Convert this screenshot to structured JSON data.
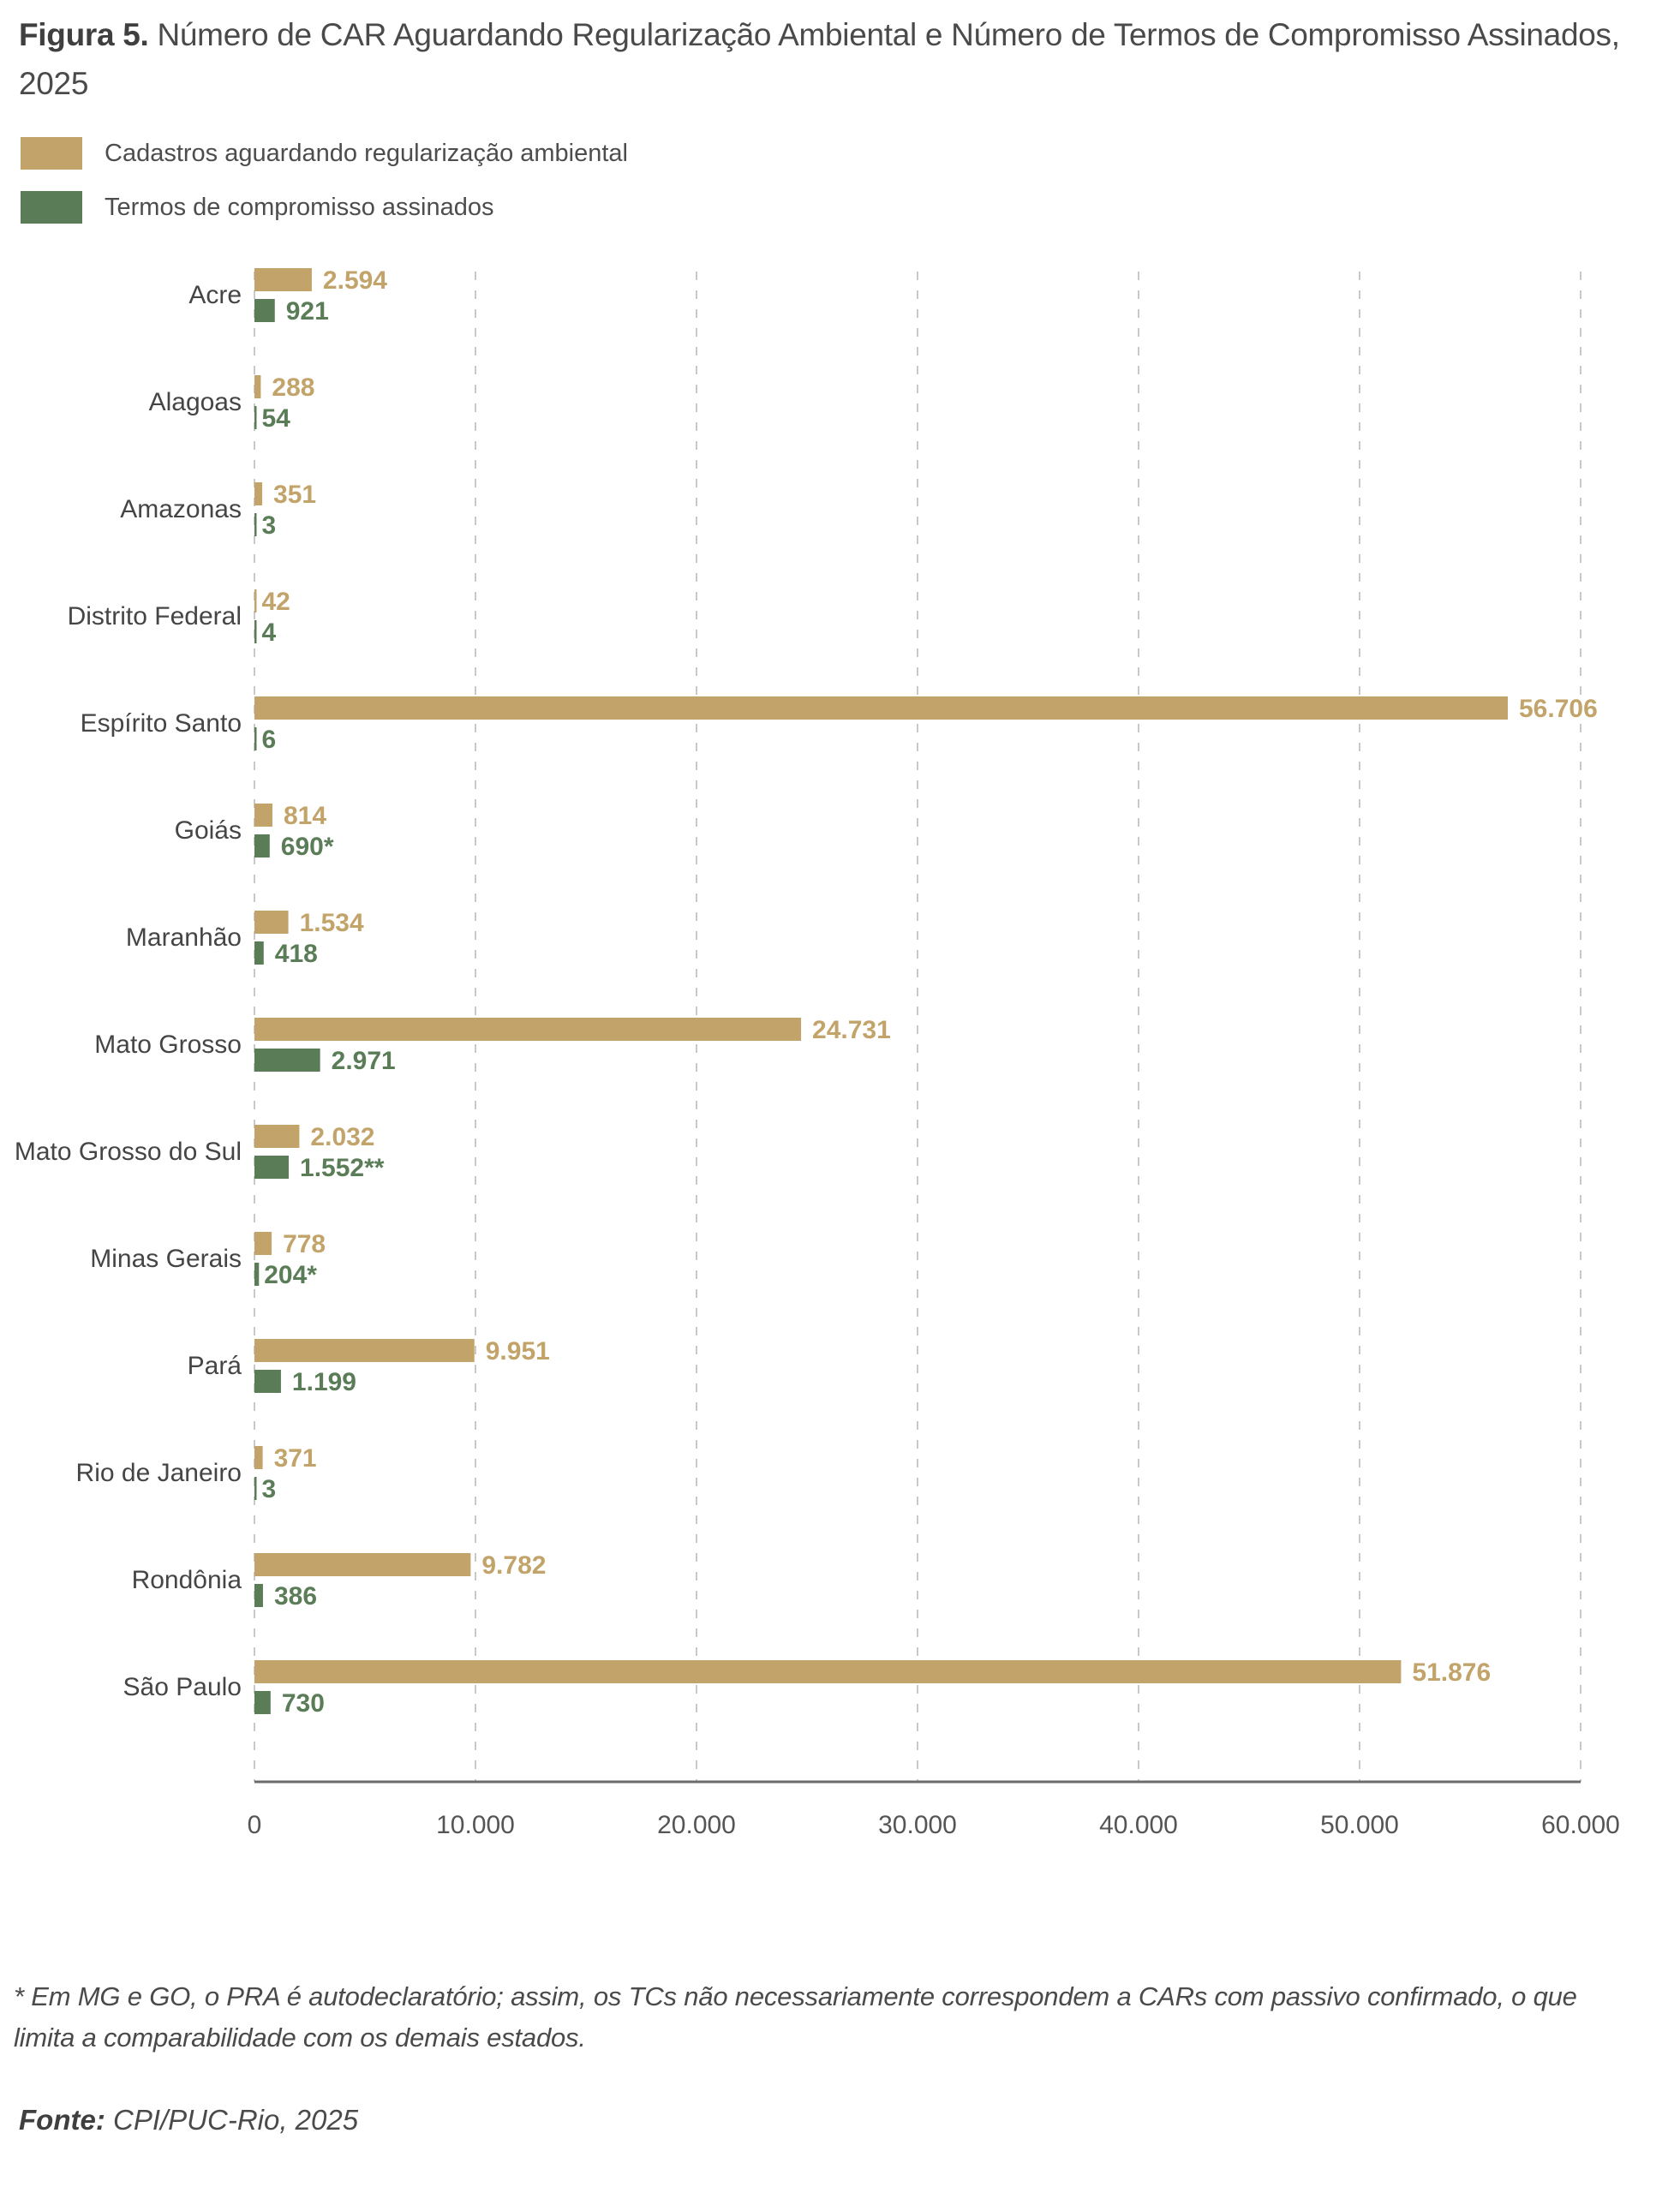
{
  "title": {
    "prefix": "Figura 5.",
    "text": "Número de CAR Aguardando Regularização Ambiental e Número de Termos de Compromisso Assinados, 2025"
  },
  "colors": {
    "cadastros": "#C2A46A",
    "termos": "#5A7D57",
    "grid": "#C9C9C9",
    "axis": "#6B6B6B",
    "category_text": "#454545",
    "tick_text": "#555555"
  },
  "legend": [
    {
      "label": "Cadastros aguardando regularização ambiental",
      "color": "#C2A46A"
    },
    {
      "label": "Termos de compromisso assinados",
      "color": "#5A7D57"
    }
  ],
  "chart_data": {
    "type": "bar",
    "orientation": "horizontal",
    "title": "Figura 5. Número de CAR Aguardando Regularização Ambiental e Número de Termos de Compromisso Assinados, 2025",
    "xlabel": "",
    "ylabel": "",
    "xlim": [
      0,
      60000
    ],
    "grid": true,
    "legend_position": "top-left",
    "x_ticks": [
      0,
      10000,
      20000,
      30000,
      40000,
      50000,
      60000
    ],
    "x_tick_labels": [
      "0",
      "10.000",
      "20.000",
      "30.000",
      "40.000",
      "50.000",
      "60.000"
    ],
    "categories": [
      "Acre",
      "Alagoas",
      "Amazonas",
      "Distrito Federal",
      "Espírito Santo",
      "Goiás",
      "Maranhão",
      "Mato Grosso",
      "Mato Grosso do Sul",
      "Minas Gerais",
      "Pará",
      "Rio de Janeiro",
      "Rondônia",
      "São Paulo"
    ],
    "series": [
      {
        "name": "Cadastros aguardando regularização ambiental",
        "color": "#C2A46A",
        "values": [
          2594,
          288,
          351,
          42,
          56706,
          814,
          1534,
          24731,
          2032,
          778,
          9951,
          371,
          9782,
          51876
        ],
        "labels": [
          "2.594",
          "288",
          "351",
          "42",
          "56.706",
          "814",
          "1.534",
          "24.731",
          "2.032",
          "778",
          "9.951",
          "371",
          "9.782",
          "51.876"
        ]
      },
      {
        "name": "Termos de compromisso assinados",
        "color": "#5A7D57",
        "values": [
          921,
          54,
          3,
          4,
          6,
          690,
          418,
          2971,
          1552,
          204,
          1199,
          3,
          386,
          730
        ],
        "labels": [
          "921",
          "54",
          "3",
          "4",
          "6",
          "690*",
          "418",
          "2.971",
          "1.552**",
          "204*",
          "1.199",
          "3",
          "386",
          "730"
        ]
      }
    ]
  },
  "footnote": "* Em MG e GO, o PRA é autodeclaratório; assim, os TCs não necessariamente correspondem a CARs com passivo confirmado, o que limita a comparabilidade com os demais estados.",
  "source": {
    "label": "Fonte:",
    "text": "CPI/PUC-Rio, 2025"
  }
}
